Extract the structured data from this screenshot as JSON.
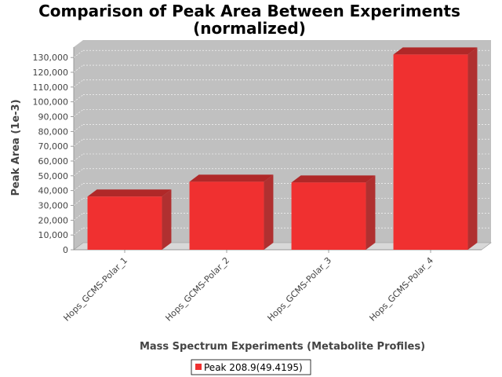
{
  "chart_data": {
    "type": "bar",
    "title_line1": "Comparison of Peak Area Between Experiments",
    "title_line2": "(normalized)",
    "xlabel": "Mass Spectrum Experiments (Metabolite Profiles)",
    "ylabel": "Peak Area (1e-3)",
    "categories": [
      "Hops_GCMS-Polar_1",
      "Hops_GCMS-Polar_2",
      "Hops_GCMS-Polar_3",
      "Hops_GCMS-Polar_4"
    ],
    "series": [
      {
        "name": "Peak 208.9(49.4195)",
        "values": [
          36000,
          46000,
          45500,
          132000
        ]
      }
    ],
    "ylim": [
      0,
      137000
    ],
    "yticks": [
      0,
      10000,
      20000,
      30000,
      40000,
      50000,
      60000,
      70000,
      80000,
      90000,
      100000,
      110000,
      120000,
      130000
    ],
    "ytick_labels": [
      "0",
      "10,000",
      "20,000",
      "30,000",
      "40,000",
      "50,000",
      "60,000",
      "70,000",
      "80,000",
      "90,000",
      "100,000",
      "110,000",
      "120,000",
      "130,000"
    ],
    "grid": true,
    "legend_position": "bottom",
    "colors": {
      "bar_front": "#f03030",
      "bar_top": "#b02828",
      "bar_side": "#b03030",
      "plot_back": "#c0c0c0",
      "plot_floor": "#d8d8d8",
      "grid": "#ffffff"
    }
  }
}
